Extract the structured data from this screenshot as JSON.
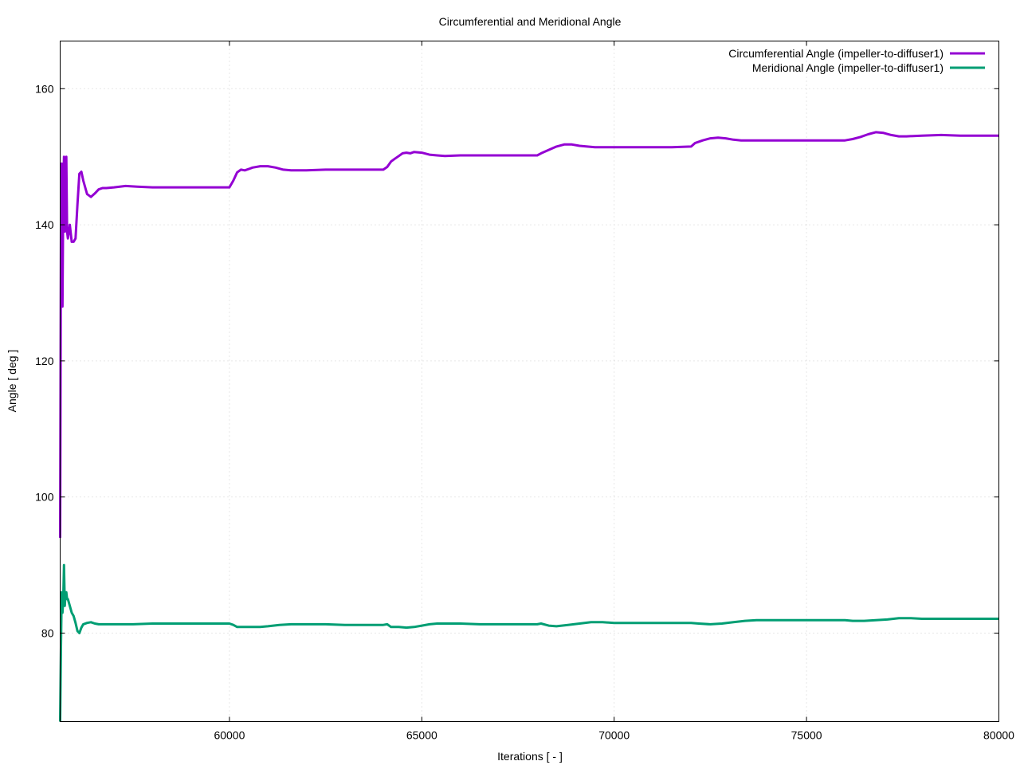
{
  "chart_data": {
    "type": "line",
    "title": "Circumferential and Meridional Angle",
    "xlabel": "Iterations [ - ]",
    "ylabel": "Angle [ deg ]",
    "xlim": [
      55600,
      80000
    ],
    "ylim": [
      67,
      167
    ],
    "xticks": [
      60000,
      65000,
      70000,
      75000,
      80000
    ],
    "yticks": [
      80,
      100,
      120,
      140,
      160
    ],
    "grid": true,
    "legend_position": "top-right",
    "series": [
      {
        "name": "Circumferential Angle (impeller-to-diffuser1)",
        "color": "#9400d3",
        "x": [
          55600,
          55620,
          55640,
          55660,
          55680,
          55700,
          55720,
          55740,
          55760,
          55780,
          55800,
          55850,
          55900,
          55950,
          56000,
          56050,
          56100,
          56150,
          56200,
          56300,
          56400,
          56500,
          56600,
          56700,
          56800,
          57000,
          57300,
          57600,
          58000,
          58500,
          59000,
          59500,
          60000,
          60100,
          60200,
          60300,
          60400,
          60500,
          60600,
          60800,
          61000,
          61200,
          61400,
          61600,
          62000,
          62500,
          63000,
          63500,
          64000,
          64100,
          64200,
          64300,
          64400,
          64500,
          64600,
          64700,
          64800,
          65000,
          65200,
          65400,
          65600,
          66000,
          66500,
          67000,
          67500,
          68000,
          68100,
          68300,
          68500,
          68700,
          68900,
          69100,
          69300,
          69500,
          70000,
          70500,
          71000,
          71500,
          72000,
          72100,
          72300,
          72500,
          72700,
          72900,
          73100,
          73300,
          73500,
          74000,
          74500,
          75000,
          75500,
          76000,
          76200,
          76400,
          76600,
          76800,
          77000,
          77200,
          77400,
          77600,
          78000,
          78500,
          79000,
          79500,
          80000
        ],
        "values": [
          94,
          140,
          149,
          128,
          145,
          150,
          139,
          147,
          150,
          139,
          138,
          140,
          137.5,
          137.5,
          138,
          143,
          147.5,
          147.8,
          146.5,
          144.5,
          144.1,
          144.6,
          145.2,
          145.4,
          145.4,
          145.5,
          145.7,
          145.6,
          145.5,
          145.5,
          145.5,
          145.5,
          145.5,
          146.5,
          147.7,
          148.1,
          148.0,
          148.2,
          148.4,
          148.6,
          148.6,
          148.4,
          148.1,
          148.0,
          148.0,
          148.1,
          148.1,
          148.1,
          148.1,
          148.5,
          149.3,
          149.7,
          150.1,
          150.5,
          150.6,
          150.5,
          150.7,
          150.6,
          150.3,
          150.2,
          150.1,
          150.2,
          150.2,
          150.2,
          150.2,
          150.2,
          150.5,
          151.0,
          151.5,
          151.8,
          151.8,
          151.6,
          151.5,
          151.4,
          151.4,
          151.4,
          151.4,
          151.4,
          151.5,
          152.0,
          152.4,
          152.7,
          152.8,
          152.7,
          152.5,
          152.4,
          152.4,
          152.4,
          152.4,
          152.4,
          152.4,
          152.4,
          152.6,
          152.9,
          153.3,
          153.6,
          153.5,
          153.2,
          153.0,
          153.0,
          153.1,
          153.2,
          153.1,
          153.1,
          153.1
        ]
      },
      {
        "name": "Meridional Angle (impeller-to-diffuser1)",
        "color": "#009e73",
        "x": [
          55600,
          55620,
          55640,
          55660,
          55680,
          55700,
          55720,
          55740,
          55760,
          55780,
          55800,
          55850,
          55900,
          55950,
          56000,
          56050,
          56100,
          56150,
          56200,
          56300,
          56400,
          56500,
          56600,
          56800,
          57000,
          57500,
          58000,
          58500,
          59000,
          59500,
          60000,
          60100,
          60200,
          60300,
          60500,
          60800,
          61000,
          61300,
          61600,
          62000,
          62500,
          63000,
          63500,
          64000,
          64100,
          64200,
          64400,
          64600,
          64800,
          65000,
          65200,
          65400,
          65600,
          66000,
          66500,
          67000,
          67500,
          68000,
          68100,
          68300,
          68500,
          68800,
          69100,
          69400,
          69700,
          70000,
          70500,
          71000,
          71500,
          72000,
          72200,
          72500,
          72800,
          73100,
          73400,
          73700,
          74000,
          74500,
          75000,
          75500,
          76000,
          76200,
          76500,
          76800,
          77100,
          77400,
          77700,
          78000,
          78500,
          79000,
          79500,
          80000
        ],
        "values": [
          67,
          78,
          86,
          83,
          85,
          90,
          84,
          86,
          86,
          85,
          85,
          84,
          83,
          82.5,
          81.5,
          80.3,
          80.0,
          80.8,
          81.3,
          81.5,
          81.6,
          81.4,
          81.3,
          81.3,
          81.3,
          81.3,
          81.4,
          81.4,
          81.4,
          81.4,
          81.4,
          81.2,
          80.9,
          80.9,
          80.9,
          80.9,
          81.0,
          81.2,
          81.3,
          81.3,
          81.3,
          81.2,
          81.2,
          81.2,
          81.3,
          80.9,
          80.9,
          80.8,
          80.9,
          81.1,
          81.3,
          81.4,
          81.4,
          81.4,
          81.3,
          81.3,
          81.3,
          81.3,
          81.4,
          81.1,
          81.0,
          81.2,
          81.4,
          81.6,
          81.6,
          81.5,
          81.5,
          81.5,
          81.5,
          81.5,
          81.4,
          81.3,
          81.4,
          81.6,
          81.8,
          81.9,
          81.9,
          81.9,
          81.9,
          81.9,
          81.9,
          81.8,
          81.8,
          81.9,
          82.0,
          82.2,
          82.2,
          82.1,
          82.1,
          82.1,
          82.1,
          82.1
        ]
      }
    ]
  }
}
